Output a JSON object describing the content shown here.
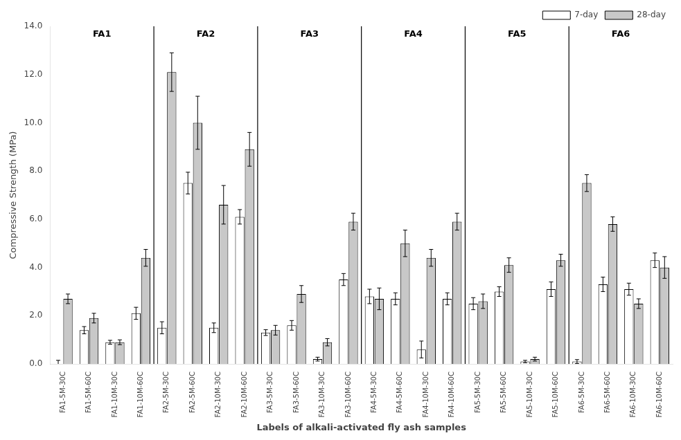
{
  "chart_data": {
    "type": "bar",
    "xlabel": "Labels of alkali-activated fly ash samples",
    "ylabel": "Compressive Strength (MPa)",
    "categories": [
      "FA1-5M-30C",
      "FA1-5M-60C",
      "FA1-10M-30C",
      "FA1-10M-60C",
      "FA2-5M-30C",
      "FA2-5M-60C",
      "FA2-10M-30C",
      "FA2-10M-60C",
      "FA3-5M-30C",
      "FA3-5M-60C",
      "FA3-10M-30C",
      "FA3-10M-60C",
      "FA4-5M-30C",
      "FA4-5M-60C",
      "FA4-10M-30C",
      "FA4-10M-60C",
      "FA5-5M-30C",
      "FA5-5M-60C",
      "FA5-10M-30C",
      "FA5-10M-60C",
      "FA6-5M-30C",
      "FA6-5M-60C",
      "FA6-10M-30C",
      "FA6-10M-60C"
    ],
    "groups": [
      "FA1",
      "FA2",
      "FA3",
      "FA4",
      "FA5",
      "FA6"
    ],
    "group_size": 4,
    "series": [
      {
        "name": "7-day",
        "color": "#ffffff",
        "values": [
          0.0,
          1.4,
          0.9,
          2.1,
          1.5,
          7.5,
          1.5,
          6.1,
          1.3,
          1.6,
          0.2,
          3.5,
          2.8,
          2.7,
          0.6,
          2.7,
          2.5,
          3.0,
          0.1,
          3.1,
          0.1,
          3.3,
          3.1,
          4.3
        ],
        "errors": [
          0.15,
          0.15,
          0.08,
          0.25,
          0.25,
          0.45,
          0.2,
          0.3,
          0.12,
          0.2,
          0.08,
          0.25,
          0.3,
          0.25,
          0.35,
          0.25,
          0.25,
          0.2,
          0.05,
          0.3,
          0.08,
          0.3,
          0.25,
          0.3
        ]
      },
      {
        "name": "28-day",
        "color": "#c8c8c8",
        "values": [
          2.7,
          1.9,
          0.9,
          4.4,
          12.1,
          10.0,
          6.6,
          8.9,
          1.4,
          2.9,
          0.9,
          5.9,
          2.7,
          5.0,
          4.4,
          5.9,
          2.6,
          4.1,
          0.2,
          4.3,
          7.5,
          5.8,
          2.5,
          4.0
        ],
        "errors": [
          0.2,
          0.2,
          0.1,
          0.35,
          0.8,
          1.1,
          0.8,
          0.7,
          0.2,
          0.35,
          0.15,
          0.35,
          0.45,
          0.55,
          0.35,
          0.35,
          0.3,
          0.3,
          0.08,
          0.25,
          0.35,
          0.3,
          0.2,
          0.45
        ]
      }
    ],
    "ylim": [
      0.0,
      14.0
    ],
    "yticks": [
      {
        "value": 0.0,
        "label": "0.0"
      },
      {
        "value": 2.0,
        "label": "2.0"
      },
      {
        "value": 4.0,
        "label": "4.0"
      },
      {
        "value": 6.0,
        "label": "6.0"
      },
      {
        "value": 8.0,
        "label": "8.0"
      },
      {
        "value": 10.0,
        "label": "10.0"
      },
      {
        "value": 12.0,
        "label": "12.0"
      },
      {
        "value": 14.0,
        "label": "14.0"
      }
    ],
    "grid": false,
    "legend": "upper right"
  }
}
